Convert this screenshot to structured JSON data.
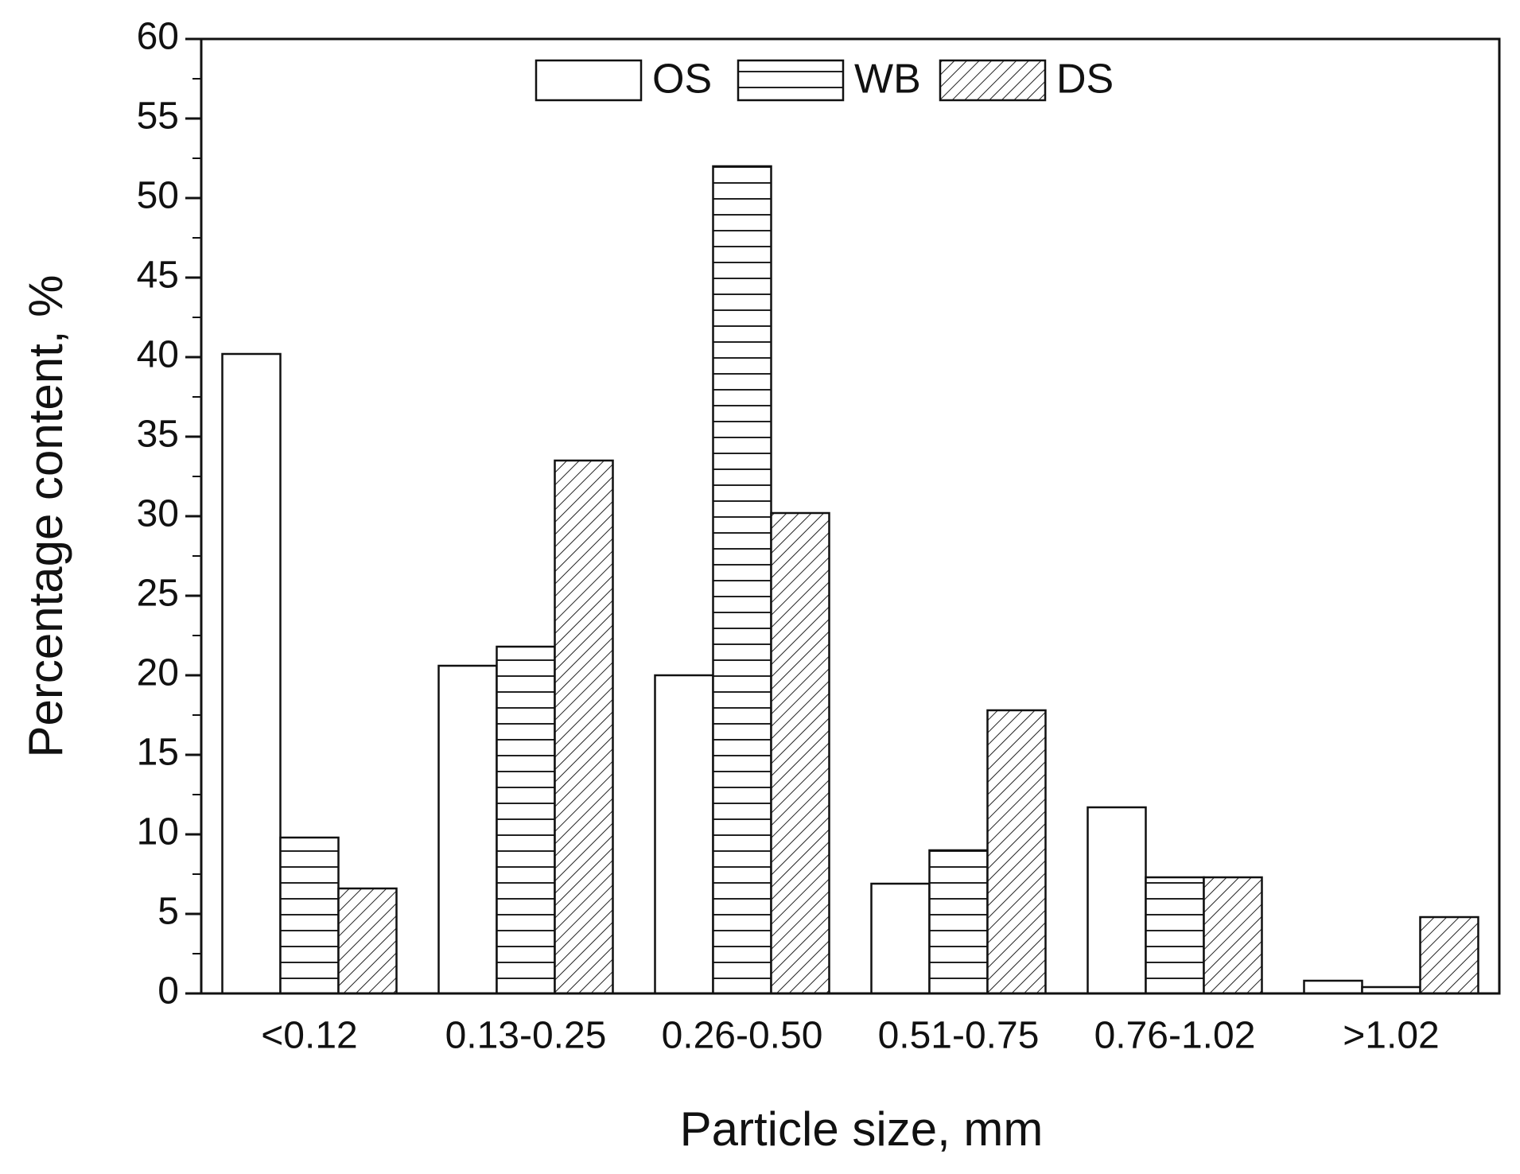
{
  "chart_data": {
    "type": "bar",
    "x_label": "Particle size, mm",
    "y_label": "Percentage content, %",
    "categories": [
      "<0.12",
      "0.13-0.25",
      "0.26-0.50",
      "0.51-0.75",
      "0.76-1.02",
      ">1.02"
    ],
    "series": [
      {
        "name": "OS",
        "color": "#ffffff",
        "pattern": "none",
        "values": [
          40.2,
          20.6,
          20.0,
          6.9,
          11.7,
          0.8
        ]
      },
      {
        "name": "WB",
        "color": "#ffffff",
        "pattern": "horizontal",
        "values": [
          9.8,
          21.8,
          52.0,
          9.0,
          7.3,
          0.4
        ]
      },
      {
        "name": "DS",
        "color": "#ffffff",
        "pattern": "diagonal",
        "values": [
          6.6,
          33.5,
          30.2,
          17.8,
          7.3,
          4.8
        ]
      }
    ],
    "ylim": [
      0,
      60
    ],
    "yticks": [
      0,
      5,
      10,
      15,
      20,
      25,
      30,
      35,
      40,
      45,
      50,
      55,
      60
    ],
    "grid": false,
    "legend": "top"
  }
}
